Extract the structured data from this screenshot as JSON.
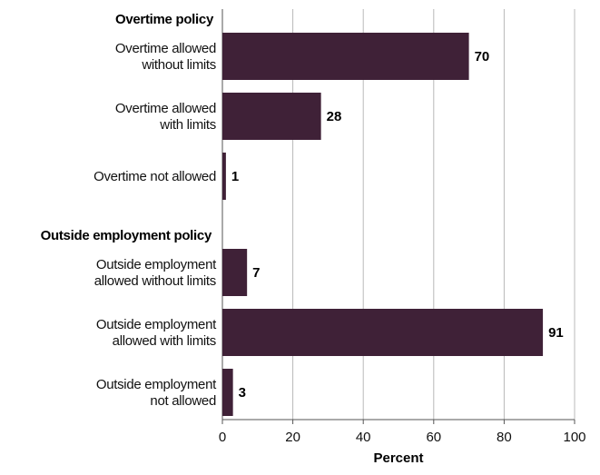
{
  "chart_data": {
    "type": "bar",
    "orientation": "horizontal",
    "groups": [
      {
        "title": "Overtime policy",
        "bars": [
          {
            "label": [
              "Overtime allowed",
              "without limits"
            ],
            "value": 70
          },
          {
            "label": [
              "Overtime allowed",
              "with limits"
            ],
            "value": 28
          },
          {
            "label": [
              "Overtime not allowed"
            ],
            "value": 1
          }
        ]
      },
      {
        "title": "Outside employment policy",
        "bars": [
          {
            "label": [
              "Outside employment",
              "allowed without limits"
            ],
            "value": 7
          },
          {
            "label": [
              "Outside employment",
              "allowed with limits"
            ],
            "value": 91
          },
          {
            "label": [
              "Outside employment",
              "not allowed"
            ],
            "value": 3
          }
        ]
      }
    ],
    "xlabel": "Percent",
    "xlim": [
      0,
      100
    ],
    "xticks": [
      0,
      20,
      40,
      60,
      80,
      100
    ],
    "grid": true,
    "bar_color": "#3f2137"
  }
}
